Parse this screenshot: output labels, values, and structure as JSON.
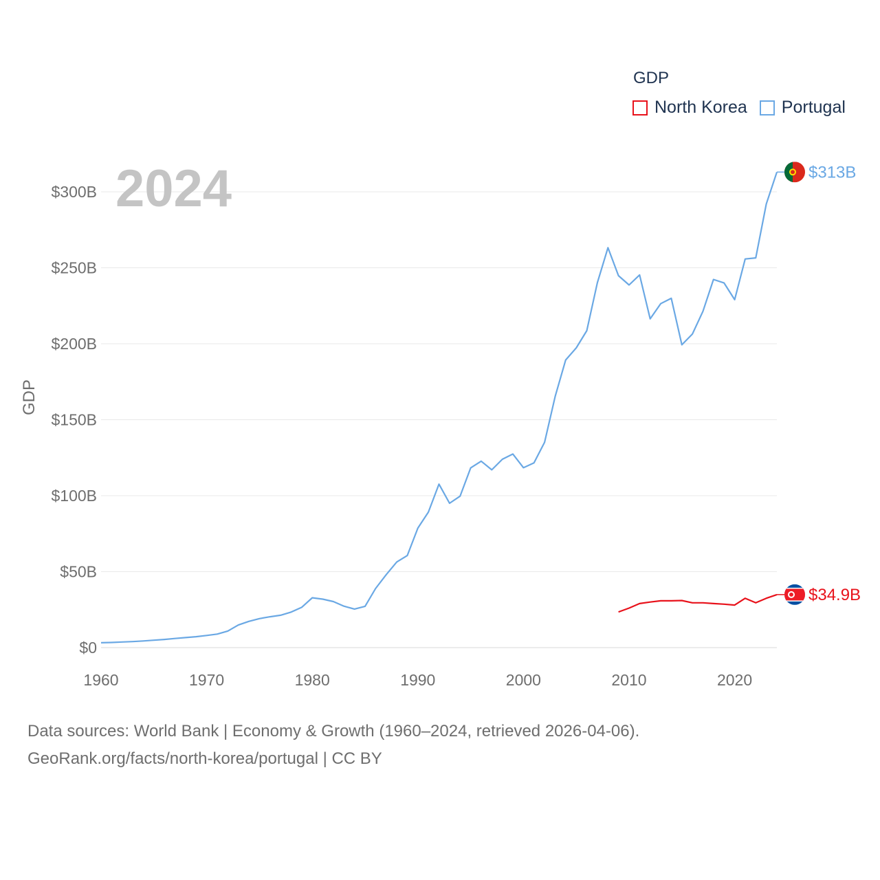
{
  "chart_data": {
    "type": "line",
    "year_label": "2024",
    "ylabel": "GDP",
    "xlim": [
      1960,
      2024
    ],
    "ylim": [
      0,
      300
    ],
    "y_unit": "billions USD",
    "x_ticks": [
      "1960",
      "1970",
      "1980",
      "1990",
      "2000",
      "2010",
      "2020"
    ],
    "y_ticks": [
      "$0",
      "$50B",
      "$100B",
      "$150B",
      "$200B",
      "$250B",
      "$300B"
    ],
    "legend_title": "GDP",
    "series": [
      {
        "name": "North Korea",
        "color": "#e8111a",
        "end_label": "$34.9B",
        "x": [
          2009,
          2010,
          2011,
          2012,
          2013,
          2014,
          2015,
          2016,
          2017,
          2018,
          2019,
          2020,
          2021,
          2022,
          2023,
          2024
        ],
        "values": [
          23.5,
          26.0,
          29.0,
          30.0,
          30.8,
          30.8,
          31.0,
          29.5,
          29.5,
          29.0,
          28.6,
          28.0,
          32.5,
          29.5,
          32.5,
          34.9
        ]
      },
      {
        "name": "Portugal",
        "color": "#6aa8e4",
        "end_label": "$313B",
        "x": [
          1960,
          1961,
          1962,
          1963,
          1964,
          1965,
          1966,
          1967,
          1968,
          1969,
          1970,
          1971,
          1972,
          1973,
          1974,
          1975,
          1976,
          1977,
          1978,
          1979,
          1980,
          1981,
          1982,
          1983,
          1984,
          1985,
          1986,
          1987,
          1988,
          1989,
          1990,
          1991,
          1992,
          1993,
          1994,
          1995,
          1996,
          1997,
          1998,
          1999,
          2000,
          2001,
          2002,
          2003,
          2004,
          2005,
          2006,
          2007,
          2008,
          2009,
          2010,
          2011,
          2012,
          2013,
          2014,
          2015,
          2016,
          2017,
          2018,
          2019,
          2020,
          2021,
          2022,
          2023,
          2024
        ],
        "values": [
          3.2,
          3.4,
          3.7,
          4.0,
          4.4,
          4.9,
          5.4,
          6.0,
          6.6,
          7.2,
          8.0,
          8.9,
          10.9,
          14.9,
          17.3,
          19.1,
          20.3,
          21.3,
          23.4,
          26.5,
          32.8,
          31.9,
          30.3,
          27.3,
          25.4,
          27.2,
          38.9,
          48.0,
          56.4,
          60.6,
          78.7,
          89.2,
          107.6,
          95.0,
          99.7,
          118.3,
          122.7,
          117.0,
          124.0,
          127.4,
          118.4,
          121.6,
          135.1,
          165.3,
          189.3,
          197.3,
          208.6,
          240.2,
          263.2,
          244.8,
          238.7,
          245.3,
          216.4,
          226.4,
          229.9,
          199.3,
          206.4,
          221.4,
          242.3,
          240.0,
          229.0,
          255.8,
          256.5,
          292.0,
          313.0
        ]
      }
    ]
  },
  "source": {
    "line1": "Data sources: World Bank | Economy & Growth (1960–2024, retrieved 2026-04-06).",
    "line2": "GeoRank.org/facts/north-korea/portugal | CC BY"
  }
}
